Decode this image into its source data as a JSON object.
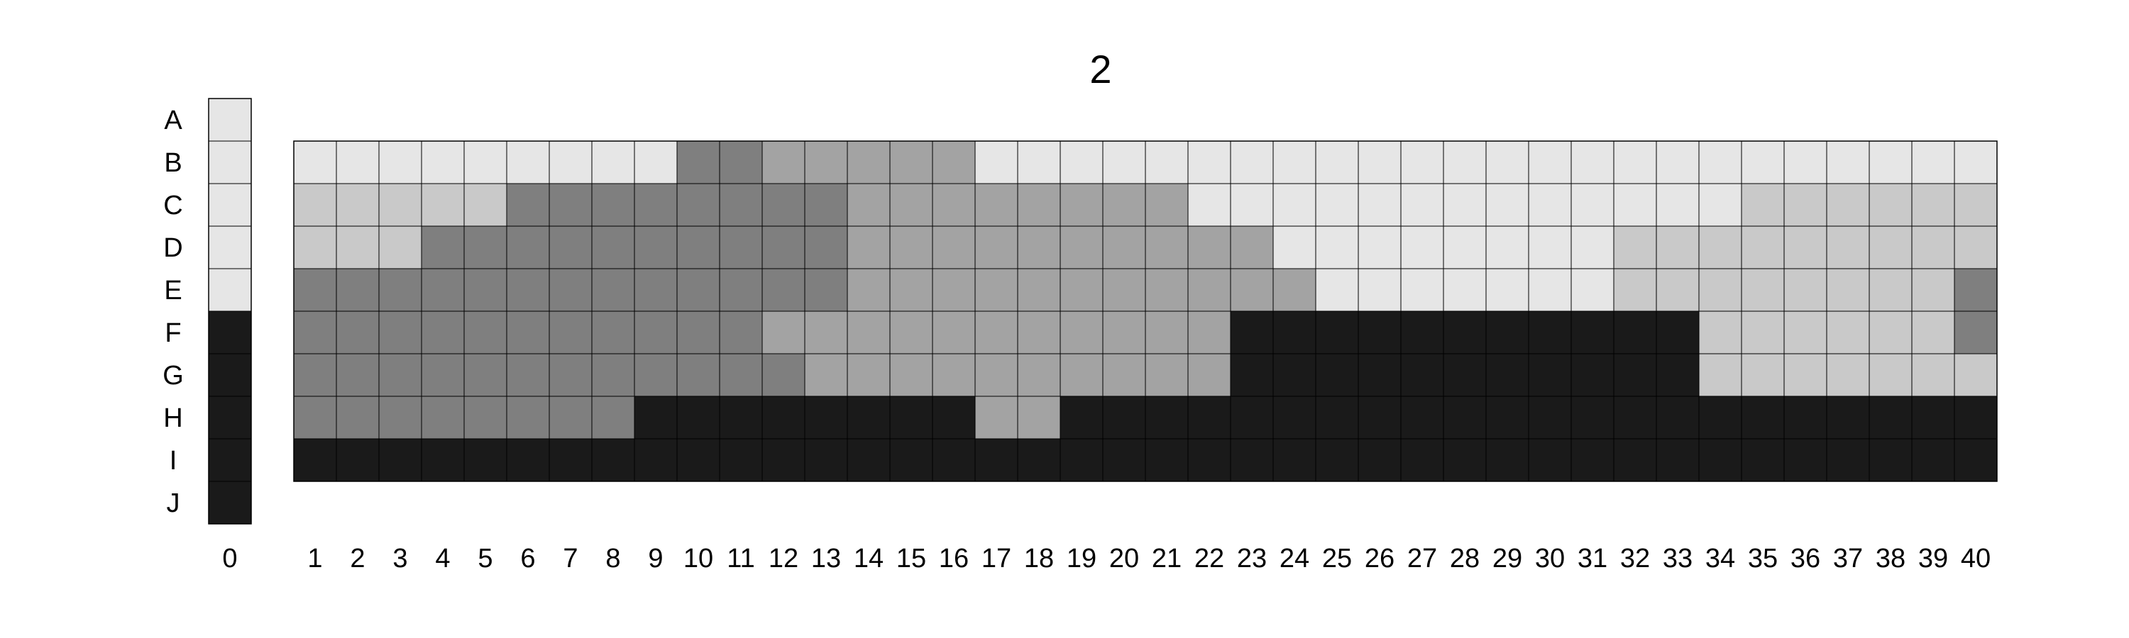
{
  "chart_data": {
    "type": "heatmap",
    "title": "2",
    "row_labels": [
      "A",
      "B",
      "C",
      "D",
      "E",
      "F",
      "G",
      "H",
      "I",
      "J"
    ],
    "reference_column": {
      "label": "0",
      "values": [
        0,
        0,
        0,
        0,
        0,
        4,
        4,
        4,
        4,
        4
      ]
    },
    "columns": [
      "1",
      "2",
      "3",
      "4",
      "5",
      "6",
      "7",
      "8",
      "9",
      "10",
      "11",
      "12",
      "13",
      "14",
      "15",
      "16",
      "17",
      "18",
      "19",
      "20",
      "21",
      "22",
      "23",
      "24",
      "25",
      "26",
      "27",
      "28",
      "29",
      "30",
      "31",
      "32",
      "33",
      "34",
      "35",
      "36",
      "37",
      "38",
      "39",
      "40"
    ],
    "grid_rows": [
      "B",
      "C",
      "D",
      "E",
      "F",
      "G",
      "H",
      "I"
    ],
    "level_colors": [
      "#e6e6e6",
      "#c9c9c9",
      "#a3a3a3",
      "#7f7f7f",
      "#1a1a1a"
    ],
    "values": [
      [
        0,
        0,
        0,
        0,
        0,
        0,
        0,
        0,
        0,
        3,
        3,
        2,
        2,
        2,
        2,
        2,
        0,
        0,
        0,
        0,
        0,
        0,
        0,
        0,
        0,
        0,
        0,
        0,
        0,
        0,
        0,
        0,
        0,
        0,
        0,
        0,
        0,
        0,
        0,
        0
      ],
      [
        1,
        1,
        1,
        1,
        1,
        3,
        3,
        3,
        3,
        3,
        3,
        3,
        3,
        2,
        2,
        2,
        2,
        2,
        2,
        2,
        2,
        0,
        0,
        0,
        0,
        0,
        0,
        0,
        0,
        0,
        0,
        0,
        0,
        0,
        1,
        1,
        1,
        1,
        1,
        1
      ],
      [
        1,
        1,
        1,
        3,
        3,
        3,
        3,
        3,
        3,
        3,
        3,
        3,
        3,
        2,
        2,
        2,
        2,
        2,
        2,
        2,
        2,
        2,
        2,
        0,
        0,
        0,
        0,
        0,
        0,
        0,
        0,
        1,
        1,
        1,
        1,
        1,
        1,
        1,
        1,
        1
      ],
      [
        3,
        3,
        3,
        3,
        3,
        3,
        3,
        3,
        3,
        3,
        3,
        3,
        3,
        2,
        2,
        2,
        2,
        2,
        2,
        2,
        2,
        2,
        2,
        2,
        0,
        0,
        0,
        0,
        0,
        0,
        0,
        1,
        1,
        1,
        1,
        1,
        1,
        1,
        1,
        3
      ],
      [
        3,
        3,
        3,
        3,
        3,
        3,
        3,
        3,
        3,
        3,
        3,
        2,
        2,
        2,
        2,
        2,
        2,
        2,
        2,
        2,
        2,
        2,
        4,
        4,
        4,
        4,
        4,
        4,
        4,
        4,
        4,
        4,
        4,
        1,
        1,
        1,
        1,
        1,
        1,
        3
      ],
      [
        3,
        3,
        3,
        3,
        3,
        3,
        3,
        3,
        3,
        3,
        3,
        3,
        2,
        2,
        2,
        2,
        2,
        2,
        2,
        2,
        2,
        2,
        4,
        4,
        4,
        4,
        4,
        4,
        4,
        4,
        4,
        4,
        4,
        1,
        1,
        1,
        1,
        1,
        1,
        1
      ],
      [
        3,
        3,
        3,
        3,
        3,
        3,
        3,
        3,
        4,
        4,
        4,
        4,
        4,
        4,
        4,
        4,
        2,
        2,
        4,
        4,
        4,
        4,
        4,
        4,
        4,
        4,
        4,
        4,
        4,
        4,
        4,
        4,
        4,
        4,
        4,
        4,
        4,
        4,
        4,
        4
      ],
      [
        4,
        4,
        4,
        4,
        4,
        4,
        4,
        4,
        4,
        4,
        4,
        4,
        4,
        4,
        4,
        4,
        4,
        4,
        4,
        4,
        4,
        4,
        4,
        4,
        4,
        4,
        4,
        4,
        4,
        4,
        4,
        4,
        4,
        4,
        4,
        4,
        4,
        4,
        4,
        4
      ]
    ]
  }
}
